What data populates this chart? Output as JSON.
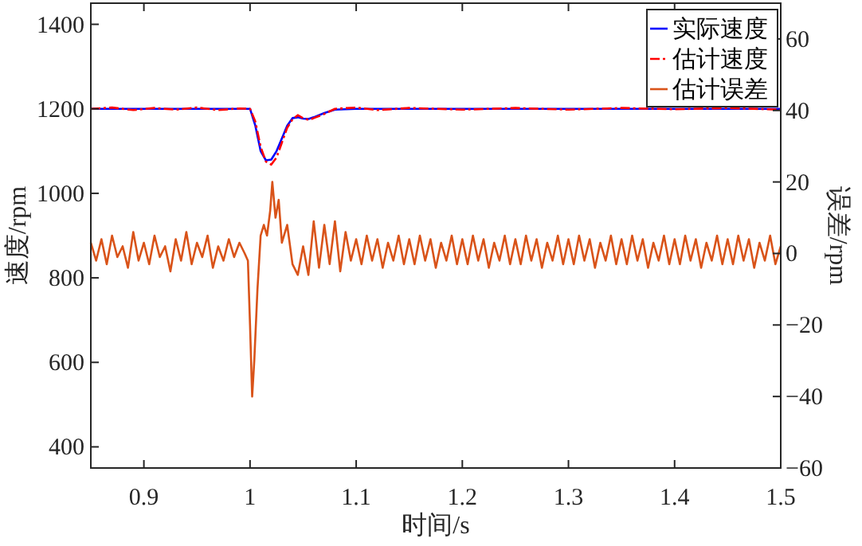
{
  "chart_data": {
    "type": "line",
    "xlabel": "时间/s",
    "ylabel": "速度/rpm",
    "y2label": "误差/rpm",
    "xlim": [
      0.85,
      1.5
    ],
    "xticks": [
      0.9,
      1,
      1.1,
      1.2,
      1.3,
      1.4,
      1.5
    ],
    "ylim": [
      350,
      1450
    ],
    "yticks": [
      400,
      600,
      800,
      1000,
      1200,
      1400
    ],
    "y2lim": [
      -60,
      70
    ],
    "y2ticks": [
      -60,
      -40,
      -20,
      0,
      20,
      40,
      60
    ],
    "legend": "top right",
    "series": [
      {
        "name": "实际速度",
        "color": "#0000ff",
        "line_style": "solid",
        "x": [
          0.85,
          0.9,
          0.95,
          1.0,
          1.005,
          1.01,
          1.015,
          1.02,
          1.025,
          1.03,
          1.035,
          1.04,
          1.045,
          1.05,
          1.055,
          1.06,
          1.07,
          1.08,
          1.1,
          1.2,
          1.3,
          1.4,
          1.5
        ],
        "values": [
          1200,
          1200,
          1200,
          1200,
          1160,
          1100,
          1078,
          1080,
          1100,
          1130,
          1160,
          1178,
          1180,
          1177,
          1176,
          1180,
          1190,
          1198,
          1200,
          1200,
          1200,
          1200,
          1200
        ]
      },
      {
        "name": "估计速度",
        "color": "#ff0000",
        "line_style": "dashed",
        "x": [
          0.85,
          0.87,
          0.89,
          0.91,
          0.93,
          0.95,
          0.97,
          0.99,
          1.0,
          1.005,
          1.01,
          1.015,
          1.02,
          1.025,
          1.03,
          1.035,
          1.04,
          1.045,
          1.05,
          1.055,
          1.06,
          1.07,
          1.08,
          1.1,
          1.12,
          1.15,
          1.2,
          1.25,
          1.3,
          1.35,
          1.4,
          1.45,
          1.5
        ],
        "values": [
          1200,
          1203,
          1197,
          1202,
          1198,
          1203,
          1197,
          1201,
          1200,
          1170,
          1110,
          1075,
          1068,
          1085,
          1120,
          1155,
          1175,
          1185,
          1178,
          1174,
          1178,
          1188,
          1200,
          1203,
          1197,
          1202,
          1198,
          1202,
          1198,
          1202,
          1199,
          1202,
          1198
        ]
      },
      {
        "name": "估计误差",
        "color": "#d95319",
        "line_style": "solid",
        "axis": "y2",
        "x": [
          0.85,
          0.855,
          0.86,
          0.865,
          0.87,
          0.875,
          0.88,
          0.885,
          0.89,
          0.895,
          0.9,
          0.905,
          0.91,
          0.915,
          0.92,
          0.925,
          0.93,
          0.935,
          0.94,
          0.945,
          0.95,
          0.955,
          0.96,
          0.965,
          0.97,
          0.975,
          0.98,
          0.985,
          0.99,
          0.995,
          0.998,
          1.0,
          1.002,
          1.004,
          1.007,
          1.01,
          1.013,
          1.016,
          1.019,
          1.021,
          1.024,
          1.027,
          1.03,
          1.035,
          1.04,
          1.045,
          1.05,
          1.055,
          1.06,
          1.065,
          1.07,
          1.075,
          1.08,
          1.085,
          1.09,
          1.095,
          1.1,
          1.105,
          1.11,
          1.115,
          1.12,
          1.125,
          1.13,
          1.135,
          1.14,
          1.145,
          1.15,
          1.155,
          1.16,
          1.165,
          1.17,
          1.175,
          1.18,
          1.185,
          1.19,
          1.195,
          1.2,
          1.205,
          1.21,
          1.215,
          1.22,
          1.225,
          1.23,
          1.235,
          1.24,
          1.245,
          1.25,
          1.255,
          1.26,
          1.265,
          1.27,
          1.275,
          1.28,
          1.285,
          1.29,
          1.295,
          1.3,
          1.305,
          1.31,
          1.315,
          1.32,
          1.325,
          1.33,
          1.335,
          1.34,
          1.345,
          1.35,
          1.355,
          1.36,
          1.365,
          1.37,
          1.375,
          1.38,
          1.385,
          1.39,
          1.395,
          1.4,
          1.405,
          1.41,
          1.415,
          1.42,
          1.425,
          1.43,
          1.435,
          1.44,
          1.445,
          1.45,
          1.455,
          1.46,
          1.465,
          1.47,
          1.475,
          1.48,
          1.485,
          1.49,
          1.495,
          1.5
        ],
        "values": [
          3,
          -2,
          4,
          -3,
          5,
          -1,
          2,
          -4,
          6,
          -2,
          3,
          -3,
          5,
          -1,
          2,
          -5,
          4,
          -2,
          6,
          -3,
          3,
          -1,
          5,
          -4,
          2,
          -2,
          4,
          -1,
          3,
          0,
          -2,
          -20,
          -40,
          -30,
          -10,
          5,
          8,
          5,
          12,
          20,
          10,
          15,
          3,
          8,
          -3,
          -6,
          2,
          -6,
          9,
          -4,
          8,
          -3,
          9,
          -5,
          6,
          -2,
          4,
          -3,
          5,
          -2,
          4,
          -4,
          3,
          -2,
          5,
          -3,
          4,
          -3,
          5,
          -2,
          4,
          -4,
          3,
          -2,
          5,
          -3,
          4,
          -3,
          5,
          -2,
          4,
          -4,
          3,
          -2,
          5,
          -3,
          4,
          -3,
          5,
          -2,
          4,
          -4,
          3,
          -2,
          5,
          -3,
          4,
          -3,
          5,
          -2,
          4,
          -4,
          3,
          -2,
          5,
          -3,
          4,
          -3,
          5,
          -2,
          4,
          -4,
          3,
          -2,
          5,
          -3,
          4,
          -3,
          5,
          -2,
          4,
          -4,
          3,
          -2,
          5,
          -3,
          4,
          -3,
          5,
          -2,
          4,
          -4,
          3,
          -2,
          5,
          -3,
          2
        ]
      }
    ]
  }
}
